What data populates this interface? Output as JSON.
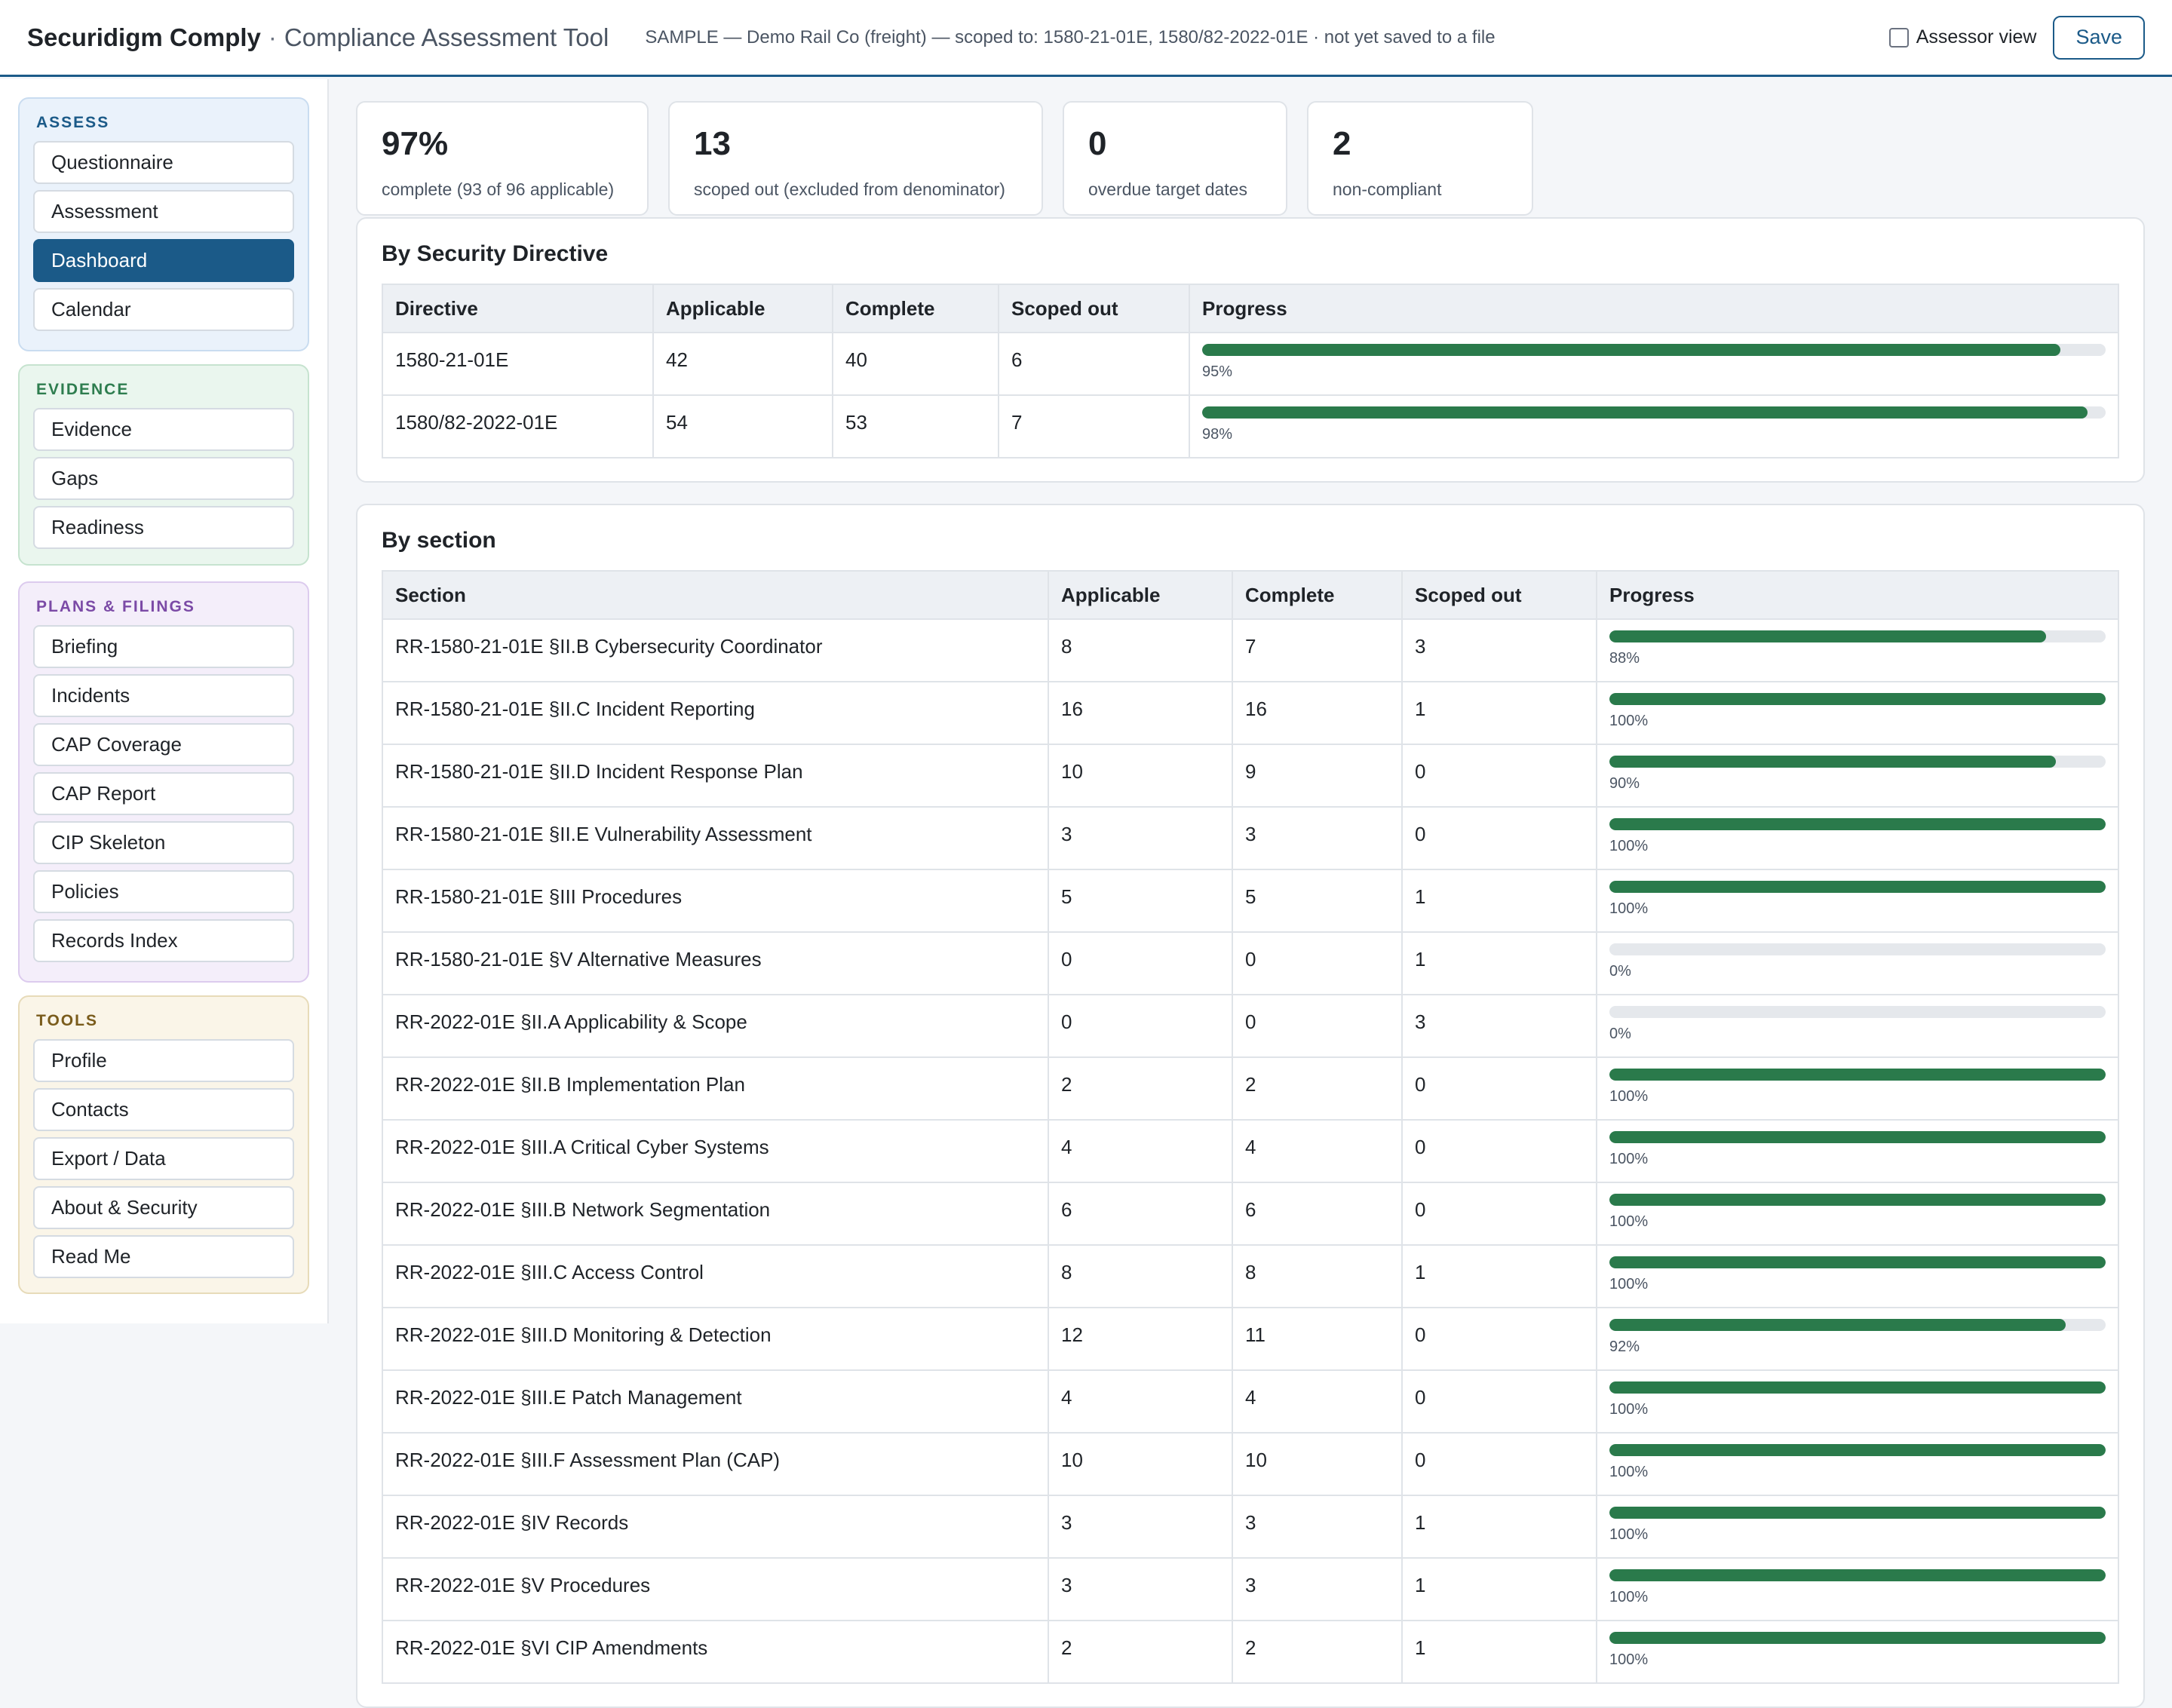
{
  "header": {
    "brand": "Securidigm Comply",
    "separator": "·",
    "subtitle": "Compliance Assessment Tool",
    "scope": "SAMPLE — Demo Rail Co (freight) — scoped to: 1580-21-01E, 1580/82-2022-01E · not yet saved to a file",
    "assessor_label": "Assessor view",
    "assessor_checked": false,
    "save_label": "Save"
  },
  "sidebar": {
    "assess": {
      "title": "ASSESS",
      "items": [
        "Questionnaire",
        "Assessment",
        "Dashboard",
        "Calendar"
      ],
      "active": "Dashboard"
    },
    "evidence": {
      "title": "EVIDENCE",
      "items": [
        "Evidence",
        "Gaps",
        "Readiness"
      ]
    },
    "plans": {
      "title": "PLANS & FILINGS",
      "items": [
        "Briefing",
        "Incidents",
        "CAP Coverage",
        "CAP Report",
        "CIP Skeleton",
        "Policies",
        "Records Index"
      ]
    },
    "tools": {
      "title": "TOOLS",
      "items": [
        "Profile",
        "Contacts",
        "Export / Data",
        "About & Security",
        "Read Me"
      ]
    }
  },
  "stats": [
    {
      "value": "97%",
      "label": "complete (93 of 96 applicable)"
    },
    {
      "value": "13",
      "label": "scoped out (excluded from denominator)"
    },
    {
      "value": "0",
      "label": "overdue target dates"
    },
    {
      "value": "2",
      "label": "non-compliant"
    }
  ],
  "by_directive": {
    "title": "By Security Directive",
    "columns": [
      "Directive",
      "Applicable",
      "Complete",
      "Scoped out",
      "Progress"
    ],
    "rows": [
      {
        "name": "1580-21-01E",
        "applicable": "42",
        "complete": "40",
        "scoped_out": "6",
        "progress": 95,
        "progress_label": "95%"
      },
      {
        "name": "1580/82-2022-01E",
        "applicable": "54",
        "complete": "53",
        "scoped_out": "7",
        "progress": 98,
        "progress_label": "98%"
      }
    ]
  },
  "by_section": {
    "title": "By section",
    "columns": [
      "Section",
      "Applicable",
      "Complete",
      "Scoped out",
      "Progress"
    ],
    "rows": [
      {
        "name": "RR-1580-21-01E §II.B Cybersecurity Coordinator",
        "applicable": "8",
        "complete": "7",
        "scoped_out": "3",
        "progress": 88,
        "progress_label": "88%"
      },
      {
        "name": "RR-1580-21-01E §II.C Incident Reporting",
        "applicable": "16",
        "complete": "16",
        "scoped_out": "1",
        "progress": 100,
        "progress_label": "100%"
      },
      {
        "name": "RR-1580-21-01E §II.D Incident Response Plan",
        "applicable": "10",
        "complete": "9",
        "scoped_out": "0",
        "progress": 90,
        "progress_label": "90%"
      },
      {
        "name": "RR-1580-21-01E §II.E Vulnerability Assessment",
        "applicable": "3",
        "complete": "3",
        "scoped_out": "0",
        "progress": 100,
        "progress_label": "100%"
      },
      {
        "name": "RR-1580-21-01E §III Procedures",
        "applicable": "5",
        "complete": "5",
        "scoped_out": "1",
        "progress": 100,
        "progress_label": "100%"
      },
      {
        "name": "RR-1580-21-01E §V Alternative Measures",
        "applicable": "0",
        "complete": "0",
        "scoped_out": "1",
        "progress": 0,
        "progress_label": "0%"
      },
      {
        "name": "RR-2022-01E §II.A Applicability & Scope",
        "applicable": "0",
        "complete": "0",
        "scoped_out": "3",
        "progress": 0,
        "progress_label": "0%"
      },
      {
        "name": "RR-2022-01E §II.B Implementation Plan",
        "applicable": "2",
        "complete": "2",
        "scoped_out": "0",
        "progress": 100,
        "progress_label": "100%"
      },
      {
        "name": "RR-2022-01E §III.A Critical Cyber Systems",
        "applicable": "4",
        "complete": "4",
        "scoped_out": "0",
        "progress": 100,
        "progress_label": "100%"
      },
      {
        "name": "RR-2022-01E §III.B Network Segmentation",
        "applicable": "6",
        "complete": "6",
        "scoped_out": "0",
        "progress": 100,
        "progress_label": "100%"
      },
      {
        "name": "RR-2022-01E §III.C Access Control",
        "applicable": "8",
        "complete": "8",
        "scoped_out": "1",
        "progress": 100,
        "progress_label": "100%"
      },
      {
        "name": "RR-2022-01E §III.D Monitoring & Detection",
        "applicable": "12",
        "complete": "11",
        "scoped_out": "0",
        "progress": 92,
        "progress_label": "92%"
      },
      {
        "name": "RR-2022-01E §III.E Patch Management",
        "applicable": "4",
        "complete": "4",
        "scoped_out": "0",
        "progress": 100,
        "progress_label": "100%"
      },
      {
        "name": "RR-2022-01E §III.F Assessment Plan (CAP)",
        "applicable": "10",
        "complete": "10",
        "scoped_out": "0",
        "progress": 100,
        "progress_label": "100%"
      },
      {
        "name": "RR-2022-01E §IV Records",
        "applicable": "3",
        "complete": "3",
        "scoped_out": "1",
        "progress": 100,
        "progress_label": "100%"
      },
      {
        "name": "RR-2022-01E §V Procedures",
        "applicable": "3",
        "complete": "3",
        "scoped_out": "1",
        "progress": 100,
        "progress_label": "100%"
      },
      {
        "name": "RR-2022-01E §VI CIP Amendments",
        "applicable": "2",
        "complete": "2",
        "scoped_out": "1",
        "progress": 100,
        "progress_label": "100%"
      }
    ]
  },
  "colors": {
    "accent": "#1b5a88",
    "progress": "#2a7a4b",
    "track": "#e5e8ec"
  }
}
